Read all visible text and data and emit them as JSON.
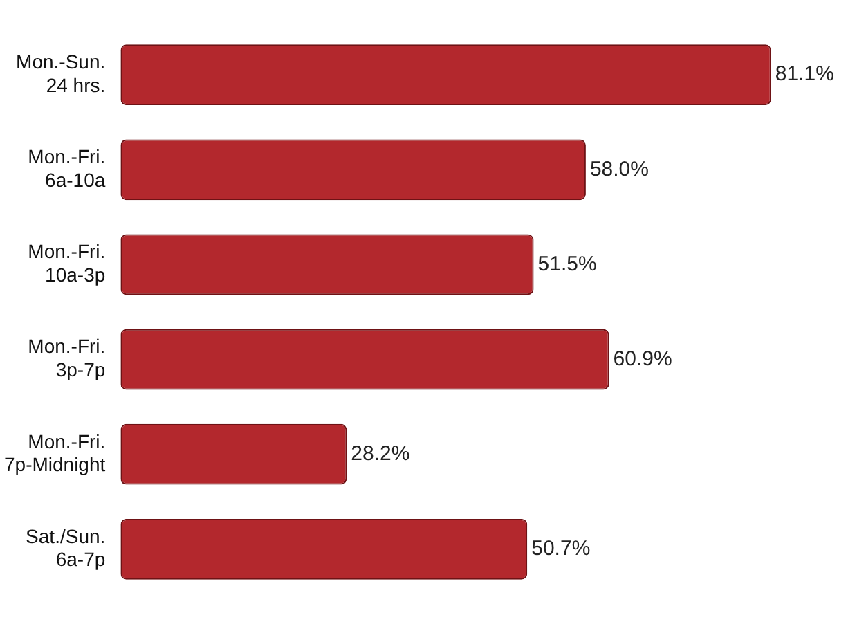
{
  "chart_data": {
    "type": "bar",
    "orientation": "horizontal",
    "categories": [
      "Mon.-Sun.\n24 hrs.",
      "Mon.-Fri.\n6a-10a",
      "Mon.-Fri.\n10a-3p",
      "Mon.-Fri.\n3p-7p",
      "Mon.-Fri.\n7p-Midnight",
      "Sat./Sun.\n6a-7p"
    ],
    "values": [
      81.1,
      58.0,
      51.5,
      60.9,
      28.2,
      50.7
    ],
    "value_labels": [
      "81.1%",
      "58.0%",
      "51.5%",
      "60.9%",
      "28.2%",
      "50.7%"
    ],
    "color": "#b3282d"
  }
}
